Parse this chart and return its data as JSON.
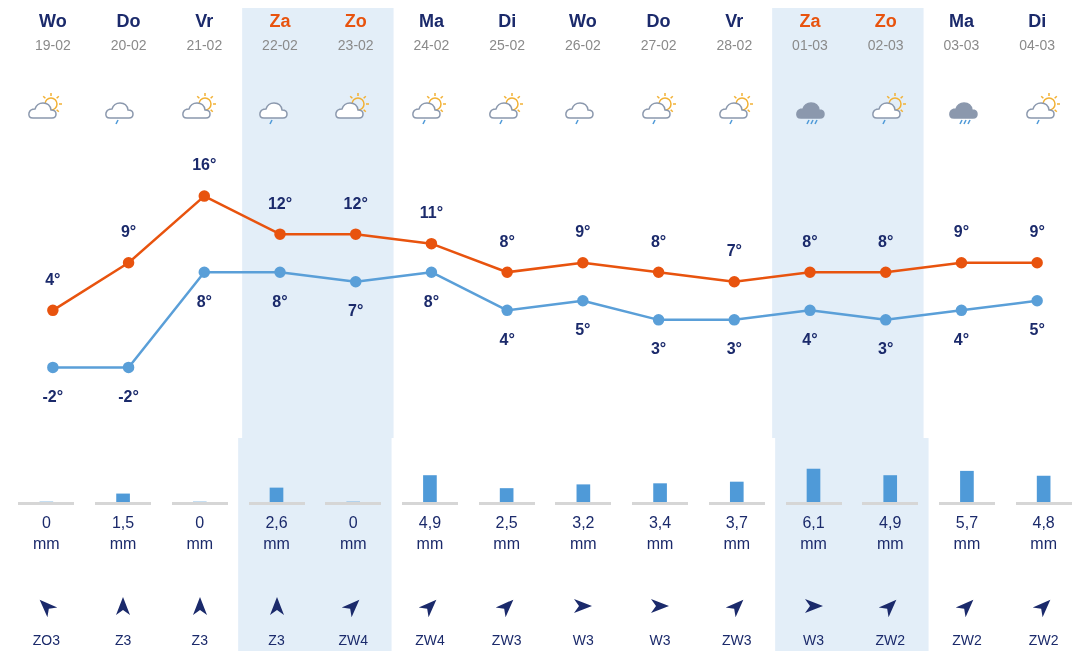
{
  "chart_data": [
    {
      "type": "line",
      "categories": [
        "Wo 19-02",
        "Do 20-02",
        "Vr 21-02",
        "Za 22-02",
        "Zo 23-02",
        "Ma 24-02",
        "Di 25-02",
        "Wo 26-02",
        "Do 27-02",
        "Vr 28-02",
        "Za 01-03",
        "Zo 02-03",
        "Ma 03-03",
        "Di 04-03"
      ],
      "series": [
        {
          "color": "#e8530e",
          "values": [
            4,
            9,
            16,
            12,
            12,
            11,
            8,
            9,
            8,
            7,
            8,
            8,
            9,
            9
          ],
          "value_labels": [
            "4°",
            "9°",
            "16°",
            "12°",
            "12°",
            "11°",
            "8°",
            "9°",
            "8°",
            "7°",
            "8°",
            "8°",
            "9°",
            "9°"
          ]
        },
        {
          "color": "#5a9fd8",
          "values": [
            -2,
            -2,
            8,
            8,
            7,
            8,
            4,
            5,
            3,
            3,
            4,
            3,
            4,
            5
          ],
          "value_labels": [
            "-2°",
            "-2°",
            "8°",
            "8°",
            "7°",
            "8°",
            "4°",
            "5°",
            "3°",
            "3°",
            "4°",
            "3°",
            "4°",
            "5°"
          ]
        }
      ],
      "tick_labels": "x",
      "grid": false,
      "legend": false,
      "marker": "circle",
      "line_style": "solid",
      "bands": [
        {
          "axis": "x",
          "from": "Za 22-02",
          "to": "Zo 23-02",
          "color": "#e3eef8"
        },
        {
          "axis": "x",
          "from": "Za 01-03",
          "to": "Zo 02-03",
          "color": "#e3eef8"
        }
      ]
    },
    {
      "type": "bar",
      "categories": [
        "Wo 19-02",
        "Do 20-02",
        "Vr 21-02",
        "Za 22-02",
        "Zo 23-02",
        "Ma 24-02",
        "Di 25-02",
        "Wo 26-02",
        "Do 27-02",
        "Vr 28-02",
        "Za 01-03",
        "Zo 02-03",
        "Ma 03-03",
        "Di 04-03"
      ],
      "series": [
        {
          "color": "#4f9ad8",
          "values": [
            0,
            1.5,
            0,
            2.6,
            0,
            4.9,
            2.5,
            3.2,
            3.4,
            3.7,
            6.1,
            4.9,
            5.7,
            4.8
          ],
          "value_labels": [
            "0 mm",
            "1,5 mm",
            "0 mm",
            "2,6 mm",
            "0 mm",
            "4,9 mm",
            "2,5 mm",
            "3,2 mm",
            "3,4 mm",
            "3,7 mm",
            "6,1 mm",
            "4,9 mm",
            "5,7 mm",
            "4,8 mm"
          ]
        }
      ],
      "tick_labels": false,
      "grid": false,
      "legend": false,
      "bands": [
        {
          "axis": "x",
          "from": "Za 22-02",
          "to": "Zo 23-02",
          "color": "#e3eef8"
        },
        {
          "axis": "x",
          "from": "Za 01-03",
          "to": "Zo 02-03",
          "color": "#e3eef8"
        }
      ],
      "annotations": [
        "ZO3",
        "Z3",
        "Z3",
        "Z3",
        "ZW4",
        "ZW4",
        "ZW3",
        "W3",
        "W3",
        "ZW3",
        "W3",
        "ZW2",
        "ZW2",
        "ZW2"
      ]
    }
  ]
}
